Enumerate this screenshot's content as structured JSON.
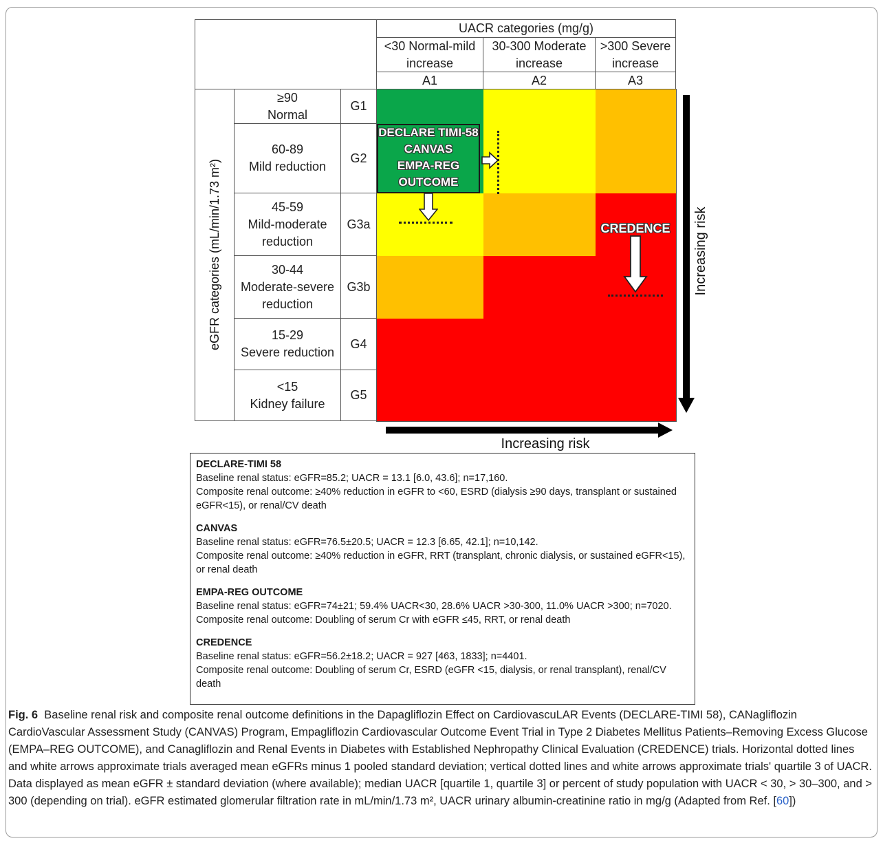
{
  "figure": {
    "uacr_header": "UACR categories (mg/g)",
    "uacr_columns": [
      {
        "line1": "<30 Normal-mild",
        "line2": "increase",
        "code": "A1"
      },
      {
        "line1": "30-300 Moderate",
        "line2": "increase",
        "code": "A2"
      },
      {
        "line1": ">300 Severe",
        "line2": "increase",
        "code": "A3"
      }
    ],
    "egfr_axis_label": "eGFR categories (mL/min/1.73 m²)",
    "egfr_rows": [
      {
        "range": "≥90",
        "desc": "Normal",
        "desc2": "",
        "code": "G1"
      },
      {
        "range": "60-89",
        "desc": "Mild reduction",
        "desc2": "",
        "code": "G2"
      },
      {
        "range": "45-59",
        "desc": "Mild-moderate",
        "desc2": "reduction",
        "code": "G3a"
      },
      {
        "range": "30-44",
        "desc": "Moderate-severe",
        "desc2": "reduction",
        "code": "G3b"
      },
      {
        "range": "15-29",
        "desc": "Severe reduction",
        "desc2": "",
        "code": "G4"
      },
      {
        "range": "<15",
        "desc": "Kidney failure",
        "desc2": "",
        "code": "G5"
      }
    ],
    "risk_colors": {
      "green": "#0aa64a",
      "yellow": "#ffff00",
      "orange": "#ffc000",
      "red": "#ff0000"
    },
    "trial_box_lines": [
      "DECLARE TIMI-58",
      "CANVAS",
      "EMPA-REG",
      "OUTCOME"
    ],
    "credence_label": "CREDENCE",
    "vertical_arrow_label": "Increasing risk",
    "horizontal_arrow_label": "Increasing risk"
  },
  "legend": [
    {
      "name": "DECLARE-TIMI 58",
      "baseline": "Baseline renal status: eGFR=85.2; UACR = 13.1 [6.0, 43.6]; n=17,160.",
      "outcome": "Composite renal outcome:  ≥40% reduction in eGFR to <60, ESRD (dialysis ≥90 days, transplant or sustained eGFR<15), or renal/CV death"
    },
    {
      "name": "CANVAS",
      "baseline": "Baseline renal status: eGFR=76.5±20.5; UACR = 12.3 [6.65, 42.1]; n=10,142.",
      "outcome": "Composite renal outcome: ≥40% reduction in eGFR, RRT (transplant, chronic dialysis, or sustained eGFR<15), or renal death"
    },
    {
      "name": "EMPA-REG OUTCOME",
      "baseline": "Baseline renal status: eGFR=74±21; 59.4% UACR<30, 28.6% UACR >30-300, 11.0% UACR >300; n=7020.",
      "outcome": "Composite renal outcome: Doubling of serum Cr with eGFR ≤45, RRT, or renal death"
    },
    {
      "name": "CREDENCE",
      "baseline": "Baseline renal status: eGFR=56.2±18.2; UACR = 927 [463, 1833]; n=4401.",
      "outcome": "Composite renal outcome: Doubling of serum Cr, ESRD (eGFR <15, dialysis, or renal transplant), renal/CV death"
    }
  ],
  "caption": {
    "label": "Fig. 6",
    "text_before_ref": "Baseline renal risk and composite renal outcome definitions in the Dapagliflozin Effect on CardiovascuLAR Events (DECLARE-TIMI 58), CANagliflozin CardioVascular Assessment Study (CANVAS) Program, Empagliflozin Cardiovascular Outcome Event Trial in Type 2 Diabetes Mellitus Patients–Removing Excess Glucose (EMPA–REG OUTCOME), and Canagliflozin and Renal Events in Diabetes with Established Nephropathy Clinical Evaluation (CREDENCE) trials. Horizontal dotted lines and white arrows approximate trials averaged mean eGFRs minus 1 pooled standard deviation; vertical dotted lines and white arrows approximate trials' quartile 3 of UACR. Data displayed as mean eGFR ± standard deviation (where available); median UACR [quartile 1, quartile 3] or percent of study population with UACR < 30, > 30–300, and > 300 (depending on trial). eGFR estimated glomerular filtration rate in mL/min/1.73 m², UACR urinary albumin-creatinine ratio in mg/g (Adapted from Ref. [",
    "ref": "60",
    "text_after_ref": "])"
  }
}
